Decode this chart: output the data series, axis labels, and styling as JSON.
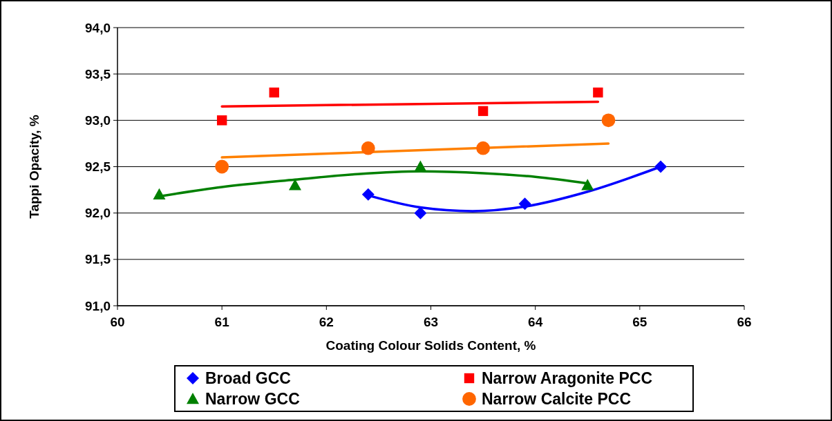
{
  "chart_data": {
    "type": "scatter",
    "xlabel": "Coating Colour Solids Content, %",
    "ylabel": "Tappi Opacity, %",
    "xlim": [
      60,
      66
    ],
    "xticks": [
      60,
      61,
      62,
      63,
      64,
      65,
      66
    ],
    "ylim": [
      91,
      94
    ],
    "yticks": [
      {
        "value": 91,
        "label": "91,0"
      },
      {
        "value": 91.5,
        "label": "91,5"
      },
      {
        "value": 92,
        "label": "92,0"
      },
      {
        "value": 92.5,
        "label": "92,5"
      },
      {
        "value": 93,
        "label": "93,0"
      },
      {
        "value": 93.5,
        "label": "93,5"
      },
      {
        "value": 94,
        "label": "94,0"
      }
    ],
    "grid": "y",
    "legend": "bottom",
    "series": [
      {
        "type": "line",
        "color": "#0000ff",
        "marker": "none",
        "x": [
          62.4,
          62.9,
          63.4,
          63.9,
          64.5,
          65.2
        ],
        "values": [
          92.19,
          92.06,
          92.02,
          92.07,
          92.23,
          92.5
        ]
      },
      {
        "type": "line",
        "color": "#008000",
        "marker": "none",
        "x": [
          60.4,
          61,
          61.7,
          62.3,
          62.9,
          63.5,
          64,
          64.5
        ],
        "values": [
          92.18,
          92.28,
          92.36,
          92.42,
          92.45,
          92.43,
          92.39,
          92.32
        ]
      },
      {
        "type": "line",
        "color": "#ff0000",
        "marker": "none",
        "x": [
          61,
          64.6
        ],
        "values": [
          93.15,
          93.2
        ]
      },
      {
        "type": "line",
        "color": "#ff8000",
        "marker": "none",
        "x": [
          61,
          64.7
        ],
        "values": [
          92.6,
          92.75
        ]
      },
      {
        "name": "Broad GCC",
        "color": "#0000ff",
        "marker": "diamond",
        "x": [
          62.4,
          62.9,
          63.9,
          65.2
        ],
        "values": [
          92.2,
          92.0,
          92.1,
          92.5
        ]
      },
      {
        "name": "Narrow Aragonite PCC",
        "color": "#ff0000",
        "marker": "square",
        "x": [
          61.0,
          61.5,
          63.5,
          64.6
        ],
        "values": [
          93.0,
          93.3,
          93.1,
          93.3
        ]
      },
      {
        "name": "Narrow GCC",
        "color": "#008000",
        "marker": "triangle",
        "x": [
          60.4,
          61.7,
          62.9,
          64.5
        ],
        "values": [
          92.2,
          92.3,
          92.5,
          92.3
        ]
      },
      {
        "name": "Narrow Calcite PCC",
        "color": "#ff6600",
        "marker": "circle",
        "x": [
          61.0,
          62.4,
          63.5,
          64.7
        ],
        "values": [
          92.5,
          92.7,
          92.7,
          93.0
        ]
      }
    ]
  }
}
